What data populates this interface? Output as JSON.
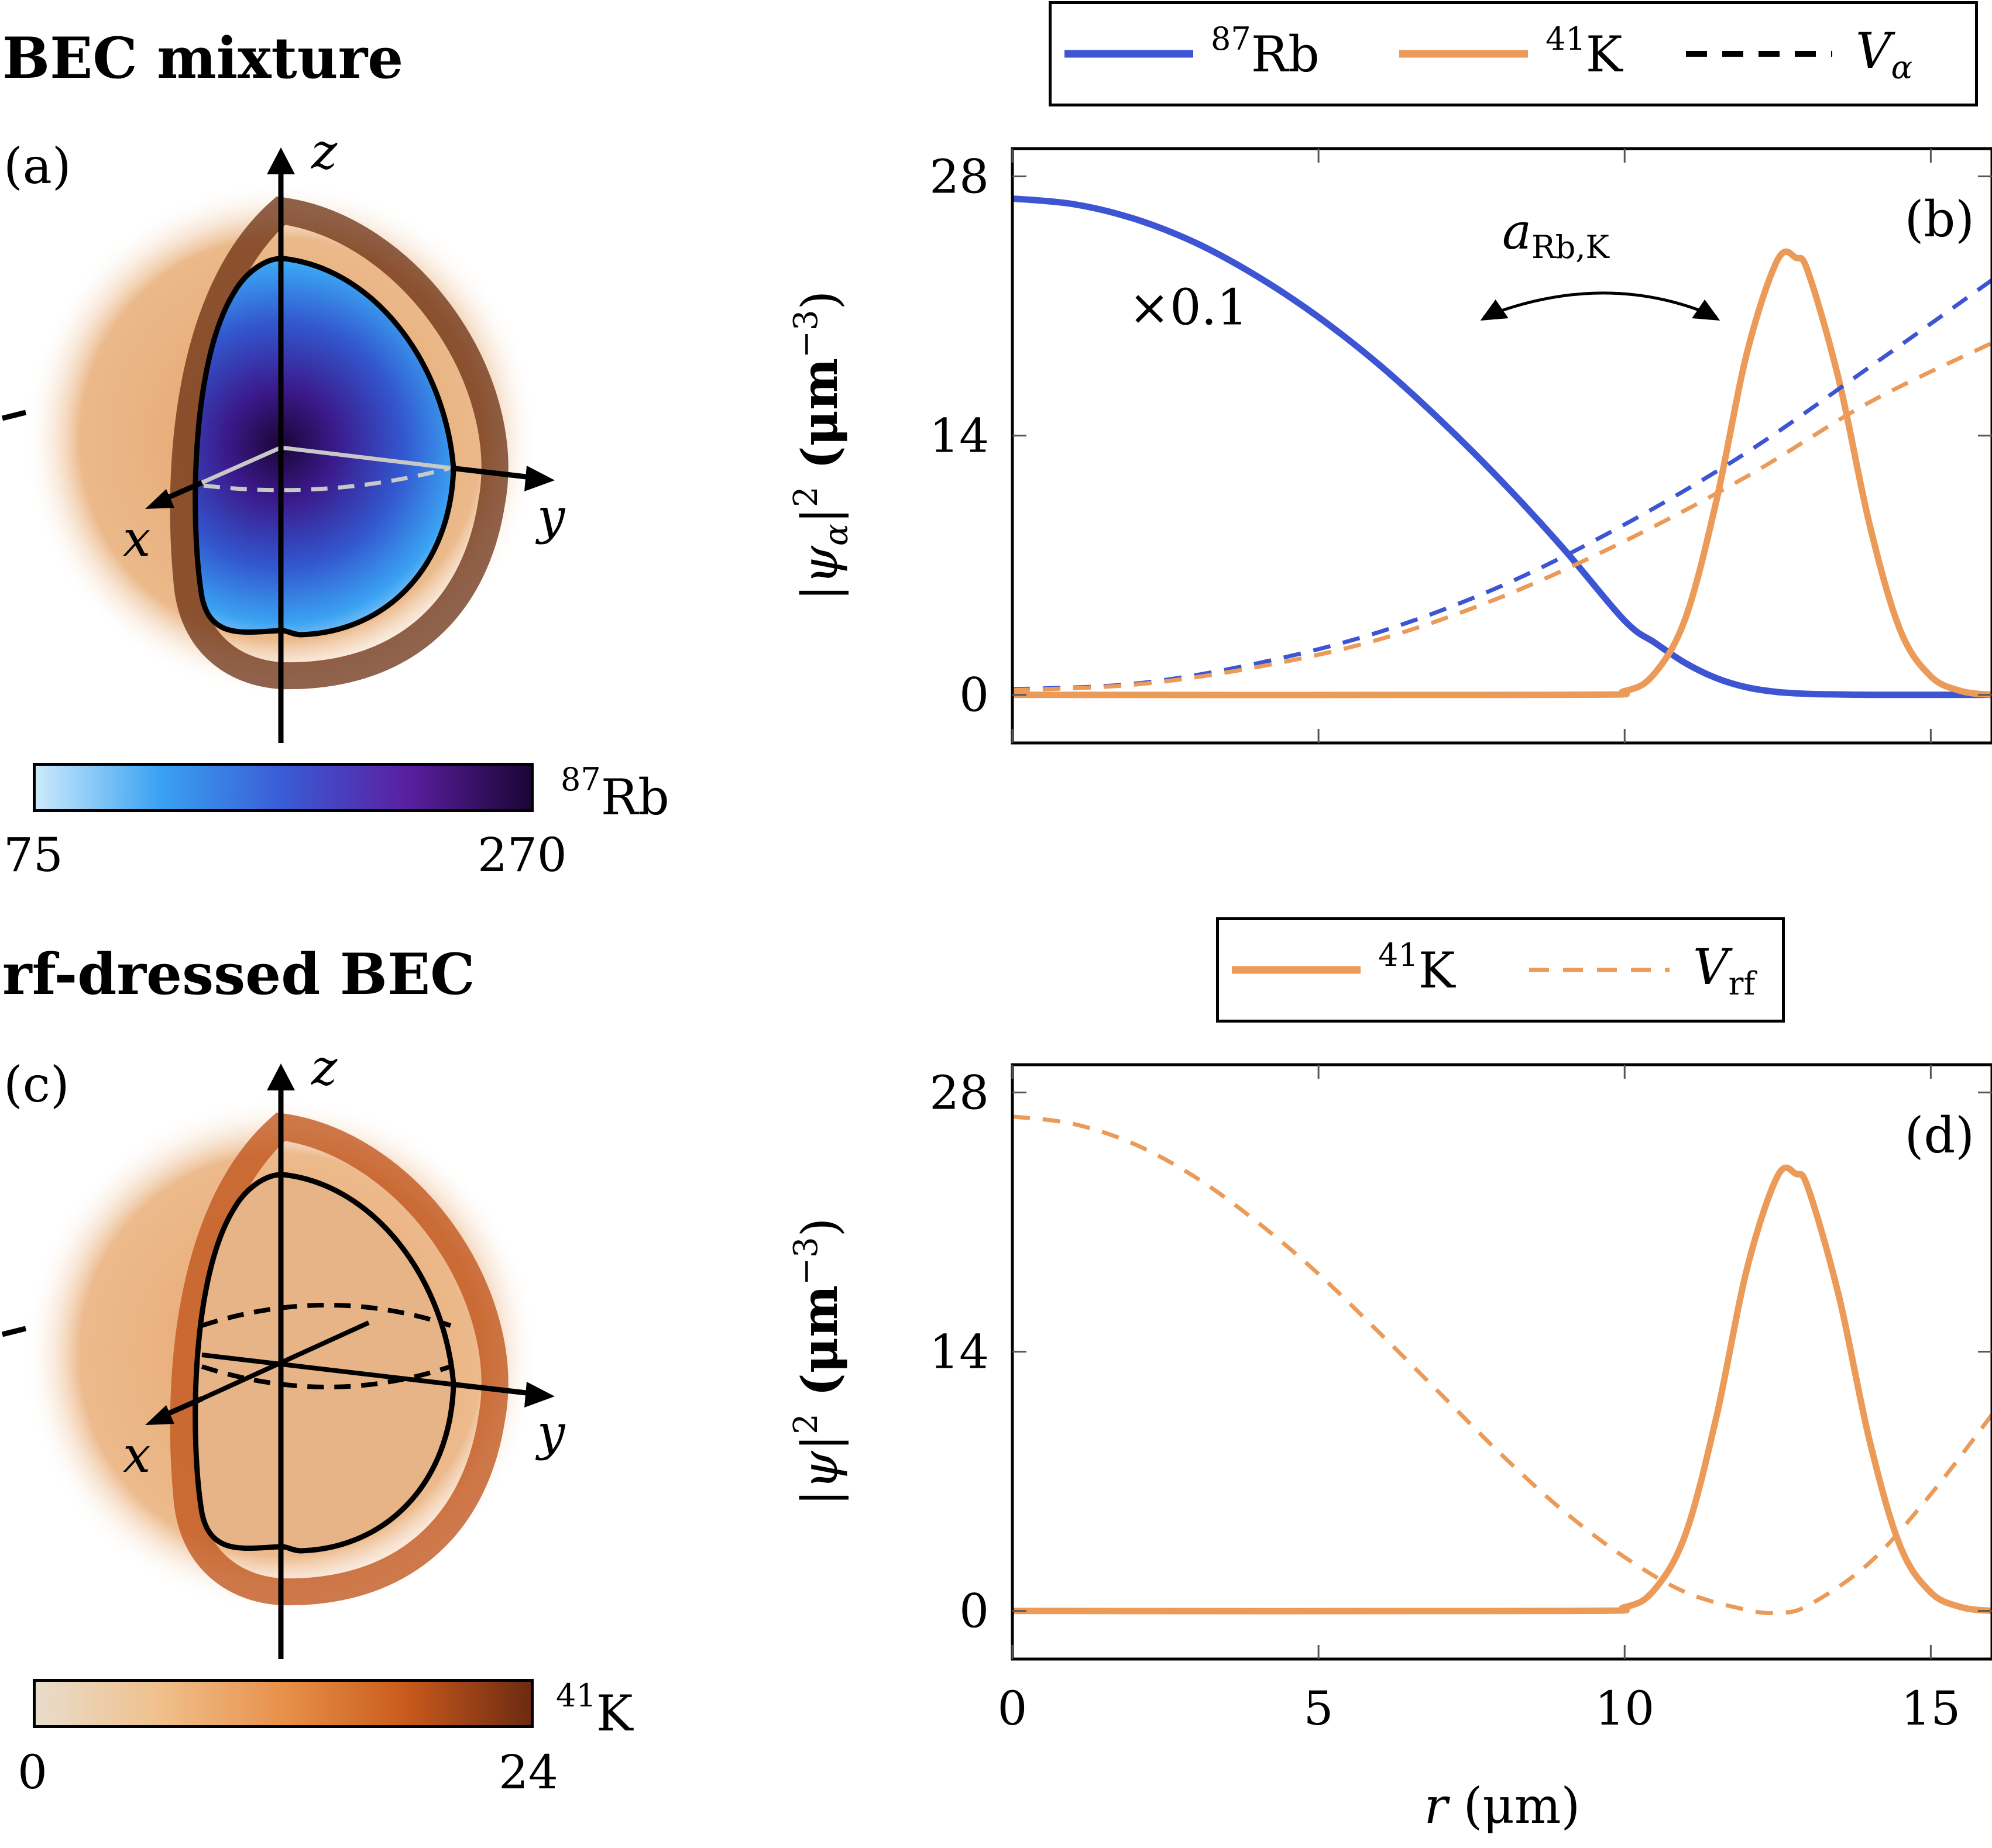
{
  "top_section": {
    "heading": "BEC mixture",
    "panel_a_label": "(a)",
    "panel_b_label": "(b)",
    "axes": {
      "x": "x",
      "y": "y",
      "z": "z"
    },
    "legend": [
      {
        "mass": "87",
        "element": "Rb",
        "style": "solid",
        "color": "#3d55d3"
      },
      {
        "mass": "41",
        "element": "K",
        "style": "solid",
        "color": "#eb9a57"
      },
      {
        "symbol": "V",
        "subscript": "α",
        "style": "dashed",
        "color": "#000000"
      }
    ],
    "colorbar": {
      "mass": "87",
      "element": "Rb",
      "min": "75",
      "max": "270",
      "colors": [
        "#cbeafc",
        "#3aa2f2",
        "#3a5bd6",
        "#5a1fa0",
        "#1b0536"
      ]
    },
    "scale_annotation": "×0.1",
    "interaction_symbol": "a",
    "interaction_subscript": "Rb,K"
  },
  "bottom_section": {
    "heading": "rf-dressed BEC",
    "panel_c_label": "(c)",
    "panel_d_label": "(d)",
    "axes": {
      "x": "x",
      "y": "y",
      "z": "z"
    },
    "legend": [
      {
        "mass": "41",
        "element": "K",
        "style": "solid",
        "color": "#eb9a57"
      },
      {
        "symbol": "V",
        "subscript": "rf",
        "style": "dashed",
        "color": "#eb9a57"
      }
    ],
    "colorbar": {
      "mass": "41",
      "element": "K",
      "min": "0",
      "max": "24",
      "colors": [
        "#e8dccb",
        "#f0c08c",
        "#e8904a",
        "#c85a1c",
        "#6e2a12"
      ]
    }
  },
  "chart_data": [
    {
      "type": "line",
      "panel": "(b)",
      "xlim": [
        0,
        16
      ],
      "ylim": [
        -2.6,
        29.5
      ],
      "xticks": [
        0,
        5,
        10,
        15
      ],
      "yticks": [
        0,
        14,
        28
      ],
      "ytick_labels": [
        "0",
        "14",
        "28"
      ],
      "ylabel_parts": [
        "|ψ",
        "α",
        "|",
        "2",
        " (μm",
        "−3",
        ")"
      ],
      "grid": false,
      "legend_position": "above",
      "series": [
        {
          "name": "87Rb",
          "style": "solid",
          "color": "#3d55d3",
          "x": [
            0,
            1,
            2,
            3,
            4,
            5,
            6,
            7,
            8,
            9,
            10,
            10.5,
            11,
            11.5,
            12,
            12.5,
            13,
            13.5,
            14,
            15,
            16
          ],
          "y": [
            26.8,
            26.5,
            25.7,
            24.4,
            22.6,
            20.4,
            17.8,
            14.8,
            11.5,
            7.9,
            4.0,
            2.8,
            1.7,
            0.9,
            0.4,
            0.15,
            0.05,
            0.02,
            0,
            0,
            0
          ]
        },
        {
          "name": "41K",
          "style": "solid",
          "color": "#eb9a57",
          "x": [
            0,
            9,
            10,
            10.5,
            11,
            11.5,
            12,
            12.5,
            12.8,
            13,
            13.5,
            14,
            14.5,
            15,
            15.5,
            16
          ],
          "y": [
            0,
            0,
            0.2,
            1.2,
            4.2,
            10.5,
            18.5,
            23.5,
            23.6,
            22.8,
            17.0,
            9.2,
            3.5,
            1.0,
            0.2,
            0
          ]
        },
        {
          "name": "V_Rb",
          "style": "dashed",
          "color": "#3d55d3",
          "x": [
            0,
            2,
            4,
            6,
            8,
            10,
            12,
            14,
            16
          ],
          "y": [
            0.3,
            0.6,
            1.7,
            3.4,
            5.9,
            9.2,
            13.1,
            17.7,
            22.4
          ]
        },
        {
          "name": "V_K",
          "style": "dashed",
          "color": "#eb9a57",
          "x": [
            0,
            2,
            4,
            6,
            8,
            10,
            12,
            14,
            16
          ],
          "y": [
            0.25,
            0.55,
            1.5,
            3.0,
            5.3,
            8.3,
            11.8,
            15.8,
            19.0
          ]
        }
      ]
    },
    {
      "type": "line",
      "panel": "(d)",
      "xlim": [
        0,
        16
      ],
      "ylim": [
        -2.6,
        29.5
      ],
      "xticks": [
        0,
        5,
        10,
        15
      ],
      "xtick_labels": [
        "0",
        "5",
        "10",
        "15"
      ],
      "yticks": [
        0,
        14,
        28
      ],
      "ytick_labels": [
        "0",
        "14",
        "28"
      ],
      "xlabel_parts": [
        "r",
        " (μm)"
      ],
      "ylabel_parts": [
        "|ψ|",
        "2",
        " (μm",
        "−3",
        ")"
      ],
      "grid": false,
      "legend_position": "above",
      "series": [
        {
          "name": "41K",
          "style": "solid",
          "color": "#eb9a57",
          "x": [
            0,
            9,
            10,
            10.5,
            11,
            11.5,
            12,
            12.5,
            12.8,
            13,
            13.5,
            14,
            14.5,
            15,
            15.5,
            16
          ],
          "y": [
            0,
            0,
            0.2,
            1.2,
            4.2,
            10.5,
            18.5,
            23.5,
            23.6,
            22.8,
            17.0,
            9.2,
            3.5,
            1.0,
            0.2,
            0
          ]
        },
        {
          "name": "V_rf",
          "style": "dashed",
          "color": "#eb9a57",
          "x": [
            0,
            1,
            2,
            3,
            4,
            5,
            6,
            7,
            8,
            9,
            10,
            11,
            12,
            12.5,
            13,
            14,
            15,
            16
          ],
          "y": [
            26.7,
            26.3,
            25.2,
            23.4,
            21.0,
            18.2,
            15.0,
            11.7,
            8.4,
            5.4,
            2.9,
            1.0,
            0.05,
            -0.1,
            0.3,
            2.6,
            6.3,
            10.6
          ]
        }
      ]
    }
  ]
}
